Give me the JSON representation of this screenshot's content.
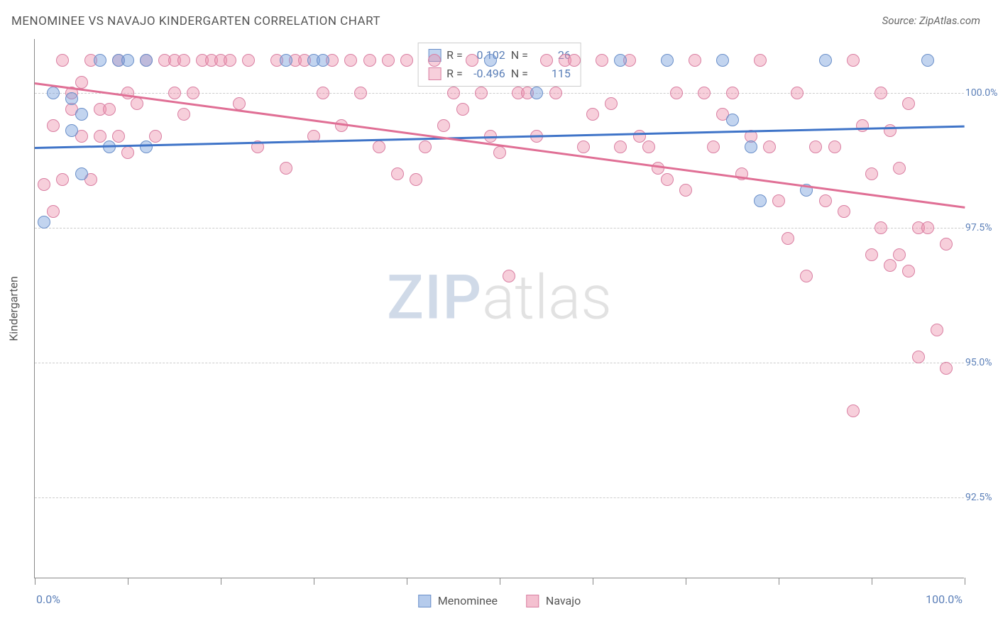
{
  "title": "MENOMINEE VS NAVAJO KINDERGARTEN CORRELATION CHART",
  "source": "Source: ZipAtlas.com",
  "ylabel": "Kindergarten",
  "watermark": {
    "part1": "ZIP",
    "part2": "atlas"
  },
  "chart": {
    "type": "scatter",
    "xlim": [
      0,
      100
    ],
    "ylim": [
      91.0,
      101.0
    ],
    "xtick_positions": [
      0,
      10,
      20,
      30,
      40,
      50,
      60,
      70,
      80,
      90,
      100
    ],
    "ytick_values": [
      92.5,
      95.0,
      97.5,
      100.0
    ],
    "ytick_labels": [
      "92.5%",
      "95.0%",
      "97.5%",
      "100.0%"
    ],
    "xaxis_min_label": "0.0%",
    "xaxis_max_label": "100.0%",
    "background_color": "#ffffff",
    "grid_color": "#cccccc",
    "grid_dash": true,
    "marker_radius": 9,
    "marker_border_width": 1.5,
    "trendline_width": 2.5,
    "title_fontsize": 17,
    "label_fontsize": 16,
    "tick_fontsize": 14,
    "tick_label_color": "#5b7fb8"
  },
  "series": [
    {
      "name": "Menominee",
      "fill_color": "rgba(120,160,220,0.45)",
      "border_color": "#6a8fc9",
      "line_color": "#3f74c8",
      "stats": {
        "R_label": "R =",
        "R": "0.102",
        "N_label": "N =",
        "N": "26"
      },
      "trend": {
        "x1": 0,
        "y1": 99.0,
        "x2": 100,
        "y2": 99.4
      },
      "points": [
        [
          1,
          97.6
        ],
        [
          2,
          100.0
        ],
        [
          4,
          99.9
        ],
        [
          4,
          99.3
        ],
        [
          5,
          99.6
        ],
        [
          5,
          98.5
        ],
        [
          7,
          100.6
        ],
        [
          8,
          99.0
        ],
        [
          9,
          100.6
        ],
        [
          10,
          100.6
        ],
        [
          12,
          100.6
        ],
        [
          12,
          99.0
        ],
        [
          27,
          100.6
        ],
        [
          30,
          100.6
        ],
        [
          31,
          100.6
        ],
        [
          49,
          100.6
        ],
        [
          54,
          100.0
        ],
        [
          63,
          100.6
        ],
        [
          68,
          100.6
        ],
        [
          74,
          100.6
        ],
        [
          75,
          99.5
        ],
        [
          77,
          99.0
        ],
        [
          78,
          98.0
        ],
        [
          83,
          98.2
        ],
        [
          85,
          100.6
        ],
        [
          96,
          100.6
        ]
      ]
    },
    {
      "name": "Navajo",
      "fill_color": "rgba(235,140,170,0.42)",
      "border_color": "#d97fa2",
      "line_color": "#e06f95",
      "stats": {
        "R_label": "R =",
        "R": "-0.496",
        "N_label": "N =",
        "N": "115"
      },
      "trend": {
        "x1": 0,
        "y1": 100.2,
        "x2": 100,
        "y2": 97.9
      },
      "points": [
        [
          1,
          98.3
        ],
        [
          2,
          99.4
        ],
        [
          2,
          97.8
        ],
        [
          3,
          100.6
        ],
        [
          3,
          98.4
        ],
        [
          4,
          99.7
        ],
        [
          4,
          100.0
        ],
        [
          5,
          100.2
        ],
        [
          5,
          99.2
        ],
        [
          6,
          100.6
        ],
        [
          6,
          98.4
        ],
        [
          7,
          99.7
        ],
        [
          7,
          99.2
        ],
        [
          8,
          99.7
        ],
        [
          9,
          100.6
        ],
        [
          9,
          99.2
        ],
        [
          10,
          100.0
        ],
        [
          10,
          98.9
        ],
        [
          11,
          99.8
        ],
        [
          12,
          100.6
        ],
        [
          13,
          99.2
        ],
        [
          14,
          100.6
        ],
        [
          15,
          100.6
        ],
        [
          15,
          100.0
        ],
        [
          16,
          99.6
        ],
        [
          16,
          100.6
        ],
        [
          17,
          100.0
        ],
        [
          18,
          100.6
        ],
        [
          19,
          100.6
        ],
        [
          20,
          100.6
        ],
        [
          21,
          100.6
        ],
        [
          22,
          99.8
        ],
        [
          23,
          100.6
        ],
        [
          24,
          99.0
        ],
        [
          26,
          100.6
        ],
        [
          27,
          98.6
        ],
        [
          28,
          100.6
        ],
        [
          29,
          100.6
        ],
        [
          30,
          99.2
        ],
        [
          31,
          100.0
        ],
        [
          32,
          100.6
        ],
        [
          33,
          99.4
        ],
        [
          34,
          100.6
        ],
        [
          35,
          100.0
        ],
        [
          36,
          100.6
        ],
        [
          37,
          99.0
        ],
        [
          38,
          100.6
        ],
        [
          39,
          98.5
        ],
        [
          40,
          100.6
        ],
        [
          41,
          98.4
        ],
        [
          42,
          99.0
        ],
        [
          43,
          100.6
        ],
        [
          44,
          99.4
        ],
        [
          45,
          100.0
        ],
        [
          46,
          99.7
        ],
        [
          47,
          100.6
        ],
        [
          48,
          100.0
        ],
        [
          49,
          99.2
        ],
        [
          50,
          98.9
        ],
        [
          51,
          96.6
        ],
        [
          52,
          100.0
        ],
        [
          53,
          100.0
        ],
        [
          54,
          99.2
        ],
        [
          55,
          100.6
        ],
        [
          56,
          100.0
        ],
        [
          57,
          100.6
        ],
        [
          58,
          100.6
        ],
        [
          59,
          99.0
        ],
        [
          60,
          99.6
        ],
        [
          61,
          100.6
        ],
        [
          62,
          99.8
        ],
        [
          63,
          99.0
        ],
        [
          64,
          100.6
        ],
        [
          65,
          99.2
        ],
        [
          66,
          99.0
        ],
        [
          67,
          98.6
        ],
        [
          68,
          98.4
        ],
        [
          69,
          100.0
        ],
        [
          70,
          98.2
        ],
        [
          71,
          100.6
        ],
        [
          72,
          100.0
        ],
        [
          73,
          99.0
        ],
        [
          74,
          99.6
        ],
        [
          75,
          100.0
        ],
        [
          76,
          98.5
        ],
        [
          77,
          99.2
        ],
        [
          78,
          100.6
        ],
        [
          79,
          99.0
        ],
        [
          80,
          98.0
        ],
        [
          81,
          97.3
        ],
        [
          82,
          100.0
        ],
        [
          83,
          96.6
        ],
        [
          84,
          99.0
        ],
        [
          85,
          98.0
        ],
        [
          86,
          99.0
        ],
        [
          87,
          97.8
        ],
        [
          88,
          100.6
        ],
        [
          88,
          94.1
        ],
        [
          89,
          99.4
        ],
        [
          90,
          98.5
        ],
        [
          90,
          97.0
        ],
        [
          91,
          100.0
        ],
        [
          91,
          97.5
        ],
        [
          92,
          99.3
        ],
        [
          92,
          96.8
        ],
        [
          93,
          98.6
        ],
        [
          93,
          97.0
        ],
        [
          94,
          99.8
        ],
        [
          94,
          96.7
        ],
        [
          95,
          95.1
        ],
        [
          95,
          97.5
        ],
        [
          96,
          97.5
        ],
        [
          97,
          95.6
        ],
        [
          98,
          94.9
        ],
        [
          98,
          97.2
        ]
      ]
    }
  ],
  "bottom_legend": [
    {
      "label": "Menominee",
      "fill": "rgba(120,160,220,0.55)",
      "border": "#6a8fc9"
    },
    {
      "label": "Navajo",
      "fill": "rgba(235,140,170,0.55)",
      "border": "#d97fa2"
    }
  ]
}
